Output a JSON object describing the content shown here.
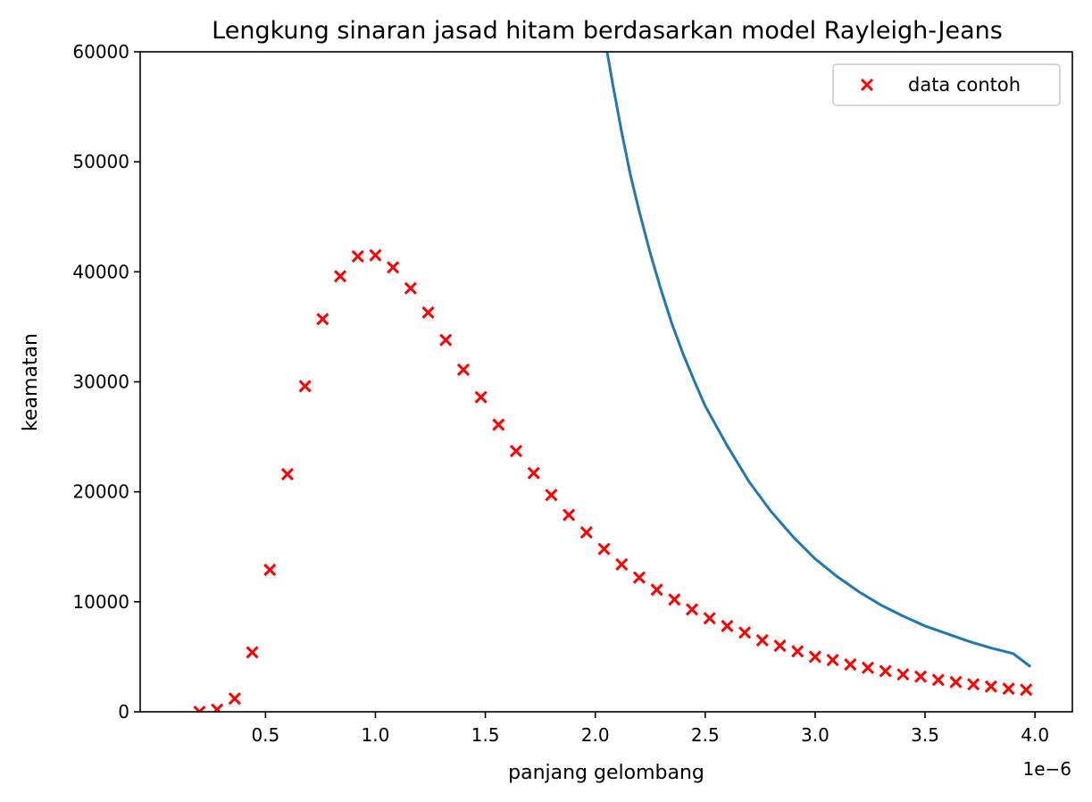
{
  "chart_data": {
    "type": "scatter",
    "title": "Lengkung sinaran jasad hitam berdasarkan model Rayleigh-Jeans",
    "xlabel": "panjang gelombang",
    "ylabel": "keamatan",
    "x_offset_label": "1e−6",
    "xlim": [
      0.0,
      4.2e-06
    ],
    "ylim": [
      0,
      60000
    ],
    "x_ticks": [
      5e-07,
      1e-06,
      1.5e-06,
      2e-06,
      2.5e-06,
      3e-06,
      3.5e-06,
      4e-06
    ],
    "x_tick_labels": [
      "0.5",
      "1.0",
      "1.5",
      "2.0",
      "2.5",
      "3.0",
      "3.5",
      "4.0"
    ],
    "y_ticks": [
      0,
      10000,
      20000,
      30000,
      40000,
      50000,
      60000
    ],
    "y_tick_labels": [
      "0",
      "10000",
      "20000",
      "30000",
      "40000",
      "50000",
      "60000"
    ],
    "grid": false,
    "legend": {
      "position": "top-right",
      "entries": [
        "data contoh"
      ]
    },
    "series": [
      {
        "name": "data contoh",
        "kind": "scatter",
        "marker": "x",
        "color": "#ff0000",
        "x": [
          2e-07,
          2.8e-07,
          3.6e-07,
          4.4e-07,
          5.2e-07,
          6e-07,
          6.8e-07,
          7.6e-07,
          8.4e-07,
          9.2e-07,
          1e-06,
          1.08e-06,
          1.16e-06,
          1.24e-06,
          1.32e-06,
          1.4e-06,
          1.48e-06,
          1.56e-06,
          1.64e-06,
          1.72e-06,
          1.8e-06,
          1.88e-06,
          1.96e-06,
          2.04e-06,
          2.12e-06,
          2.2e-06,
          2.28e-06,
          2.36e-06,
          2.44e-06,
          2.52e-06,
          2.6e-06,
          2.68e-06,
          2.76e-06,
          2.84e-06,
          2.92e-06,
          3e-06,
          3.08e-06,
          3.16e-06,
          3.24e-06,
          3.32e-06,
          3.4e-06,
          3.48e-06,
          3.56e-06,
          3.64e-06,
          3.72e-06,
          3.8e-06,
          3.88e-06,
          3.96e-06
        ],
        "y": [
          0,
          200,
          1200,
          5400,
          12900,
          21600,
          29600,
          35700,
          39600,
          41400,
          41500,
          40400,
          38500,
          36300,
          33800,
          31100,
          28600,
          26100,
          23700,
          21700,
          19700,
          17900,
          16300,
          14800,
          13400,
          12200,
          11100,
          10200,
          9300,
          8500,
          7800,
          7200,
          6500,
          6000,
          5500,
          5000,
          4700,
          4300,
          4000,
          3700,
          3400,
          3200,
          2900,
          2700,
          2500,
          2300,
          2100,
          2000
        ]
      },
      {
        "name": "",
        "kind": "line",
        "color": "#1f77b4",
        "x": [
          2e-06,
          2.04e-06,
          2.08e-06,
          2.12e-06,
          2.16e-06,
          2.2e-06,
          2.25e-06,
          2.3e-06,
          2.35e-06,
          2.4e-06,
          2.45e-06,
          2.5e-06,
          2.6e-06,
          2.7e-06,
          2.8e-06,
          2.9e-06,
          3e-06,
          3.1e-06,
          3.2e-06,
          3.3e-06,
          3.4e-06,
          3.5e-06,
          3.6e-06,
          3.7e-06,
          3.8e-06,
          3.9e-06,
          3.98e-06
        ],
        "y": [
          66700,
          61600,
          57000,
          52700,
          48800,
          45500,
          41700,
          38300,
          35200,
          32500,
          30100,
          27800,
          24200,
          20900,
          18200,
          15900,
          13900,
          12300,
          10900,
          9700,
          8700,
          7800,
          7100,
          6400,
          5800,
          5300,
          4100
        ]
      }
    ]
  }
}
